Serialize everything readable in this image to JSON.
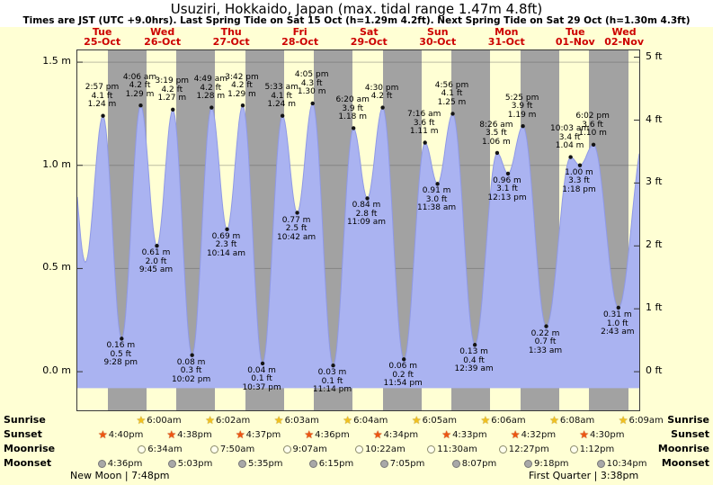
{
  "title": "Usuziri, Hokkaido, Japan (max. tidal range 1.47m 4.8ft)",
  "subtitle": "Times are JST (UTC +9.0hrs). Last Spring Tide on Sat 15 Oct (h=1.29m 4.2ft). Next Spring Tide on Sat 29 Oct (h=1.30m 4.3ft)",
  "colors": {
    "day_bg": "#ffffd4",
    "night_bg": "#a2a2a2",
    "tide_fill": "#aab3f1",
    "tide_stroke": "#8f99e6",
    "day_label_red": "#cc0000",
    "grid": "rgba(90,90,90,0.40)",
    "dot": "#141414"
  },
  "chart_data": {
    "type": "area",
    "title": "Usuziri, Hokkaido, Japan (max. tidal range 1.47m 4.8ft)",
    "t_start": 6,
    "t_end": 202,
    "ylim": [
      -0.19,
      1.56
    ],
    "baseline_m": -0.08,
    "y_axis_left": {
      "unit": "m",
      "ticks": [
        0,
        0.5,
        1,
        1.5
      ]
    },
    "y_axis_right": {
      "unit": "ft",
      "ticks": [
        0,
        1,
        2,
        3,
        4,
        5
      ]
    },
    "days": [
      {
        "dow": "Tue",
        "date": "25-Oct"
      },
      {
        "dow": "Wed",
        "date": "26-Oct"
      },
      {
        "dow": "Thu",
        "date": "27-Oct"
      },
      {
        "dow": "Fri",
        "date": "28-Oct"
      },
      {
        "dow": "Sat",
        "date": "29-Oct"
      },
      {
        "dow": "Sun",
        "date": "30-Oct"
      },
      {
        "dow": "Mon",
        "date": "31-Oct"
      },
      {
        "dow": "Tue",
        "date": "01-Nov"
      },
      {
        "dow": "Wed",
        "date": "02-Nov"
      }
    ],
    "tide_events": [
      {
        "type": "high",
        "t": 3.0,
        "m": 1.2,
        "labels": []
      },
      {
        "type": "low",
        "t": 8.8,
        "m": 0.53,
        "labels": []
      },
      {
        "type": "high",
        "t": 14.95,
        "m": 1.24,
        "ft": 4.1,
        "time": "2:57 pm",
        "labels": [
          "2:57 pm",
          "4.1 ft",
          "1.24 m"
        ]
      },
      {
        "type": "low",
        "t": 21.47,
        "m": 0.16,
        "ft": 0.5,
        "time": "9:28 pm",
        "labels": [
          "0.16 m",
          "0.5 ft",
          "9:28 pm"
        ]
      },
      {
        "type": "high",
        "t": 28.1,
        "m": 1.29,
        "ft": 4.2,
        "time": "4:06 am",
        "labels": [
          "4:06 am",
          "4.2 ft",
          "1.29 m"
        ]
      },
      {
        "type": "low",
        "t": 33.75,
        "m": 0.61,
        "ft": 2.0,
        "time": "9:45 am",
        "labels": [
          "0.61 m",
          "2.0 ft",
          "9:45 am"
        ]
      },
      {
        "type": "high",
        "t": 39.32,
        "m": 1.27,
        "ft": 4.2,
        "time": "3:19 pm",
        "labels": [
          "3:19 pm",
          "4.2 ft",
          "1.27 m"
        ]
      },
      {
        "type": "low",
        "t": 46.03,
        "m": 0.08,
        "ft": 0.3,
        "time": "10:02 pm",
        "labels": [
          "0.08 m",
          "0.3 ft",
          "10:02 pm"
        ]
      },
      {
        "type": "high",
        "t": 52.82,
        "m": 1.28,
        "ft": 4.2,
        "time": "4:49 am",
        "labels": [
          "4:49 am",
          "4.2 ft",
          "1.28 m"
        ]
      },
      {
        "type": "low",
        "t": 58.23,
        "m": 0.69,
        "ft": 2.3,
        "time": "10:14 am",
        "labels": [
          "0.69 m",
          "2.3 ft",
          "10:14 am"
        ]
      },
      {
        "type": "high",
        "t": 63.7,
        "m": 1.29,
        "ft": 4.2,
        "time": "3:42 pm",
        "labels": [
          "3:42 pm",
          "4.2 ft",
          "1.29 m"
        ]
      },
      {
        "type": "low",
        "t": 70.62,
        "m": 0.04,
        "ft": 0.1,
        "time": "10:37 pm",
        "labels": [
          "0.04 m",
          "0.1 ft",
          "10:37 pm"
        ]
      },
      {
        "type": "high",
        "t": 77.55,
        "m": 1.24,
        "ft": 4.1,
        "time": "5:33 am",
        "labels": [
          "5:33 am",
          "4.1 ft",
          "1.24 m"
        ]
      },
      {
        "type": "low",
        "t": 82.7,
        "m": 0.77,
        "ft": 2.5,
        "time": "10:42 am",
        "labels": [
          "0.77 m",
          "2.5 ft",
          "10:42 am"
        ]
      },
      {
        "type": "high",
        "t": 88.08,
        "m": 1.3,
        "ft": 4.3,
        "time": "4:05 pm",
        "labels": [
          "4:05 pm",
          "4.3 ft",
          "1.30 m"
        ]
      },
      {
        "type": "low",
        "t": 95.23,
        "m": 0.03,
        "ft": 0.1,
        "time": "11:14 pm",
        "labels": [
          "0.03 m",
          "0.1 ft",
          "11:14 pm"
        ]
      },
      {
        "type": "high",
        "t": 102.33,
        "m": 1.18,
        "ft": 3.9,
        "time": "6:20 am",
        "labels": [
          "6:20 am",
          "3.9 ft",
          "1.18 m"
        ]
      },
      {
        "type": "low",
        "t": 107.15,
        "m": 0.84,
        "ft": 2.8,
        "time": "11:09 am",
        "labels": [
          "0.84 m",
          "2.8 ft",
          "11:09 am"
        ]
      },
      {
        "type": "high",
        "t": 112.5,
        "m": 1.28,
        "ft": 4.2,
        "time": "4:30 pm",
        "labels": [
          "4:30 pm",
          "4.2 ft"
        ]
      },
      {
        "type": "low",
        "t": 119.9,
        "m": 0.06,
        "ft": 0.2,
        "time": "11:54 pm",
        "labels": [
          "0.06 m",
          "0.2 ft",
          "11:54 pm"
        ]
      },
      {
        "type": "high",
        "t": 127.27,
        "m": 1.11,
        "ft": 3.6,
        "time": "7:16 am",
        "labels": [
          "7:16 am",
          "3.6 ft",
          "1.11 m"
        ]
      },
      {
        "type": "low",
        "t": 131.63,
        "m": 0.91,
        "ft": 3.0,
        "time": "11:38 am",
        "labels": [
          "0.91 m",
          "3.0 ft",
          "11:38 am"
        ]
      },
      {
        "type": "high",
        "t": 136.93,
        "m": 1.25,
        "ft": 4.1,
        "time": "4:56 pm",
        "labels": [
          "4:56 pm",
          "4.1 ft",
          "1.25 m"
        ]
      },
      {
        "type": "low",
        "t": 144.65,
        "m": 0.13,
        "ft": 0.4,
        "time": "12:39 am",
        "labels": [
          "0.13 m",
          "0.4 ft",
          "12:39 am"
        ]
      },
      {
        "type": "high",
        "t": 152.43,
        "m": 1.06,
        "ft": 3.5,
        "time": "8:26 am",
        "labels": [
          "8:26 am",
          "3.5 ft",
          "1.06 m"
        ]
      },
      {
        "type": "low",
        "t": 156.22,
        "m": 0.96,
        "ft": 3.1,
        "time": "12:13 pm",
        "labels": [
          "0.96 m",
          "3.1 ft",
          "12:13 pm"
        ]
      },
      {
        "type": "high",
        "t": 161.42,
        "m": 1.19,
        "ft": 3.9,
        "time": "5:25 pm",
        "labels": [
          "5:25 pm",
          "3.9 ft",
          "1.19 m"
        ]
      },
      {
        "type": "low",
        "t": 169.55,
        "m": 0.22,
        "ft": 0.7,
        "time": "1:33 am",
        "labels": [
          "0.22 m",
          "0.7 ft",
          "1:33 am"
        ]
      },
      {
        "type": "high",
        "t": 178.05,
        "m": 1.04,
        "ft": 3.4,
        "time": "10:03 am",
        "labels": [
          "10:03 am",
          "3.4 ft",
          "1.04 m"
        ]
      },
      {
        "type": "low",
        "t": 181.3,
        "m": 1.0,
        "ft": 3.3,
        "time": "1:18 pm",
        "labels": [
          "1.00 m",
          "3.3 ft",
          "1:18 pm"
        ]
      },
      {
        "type": "high",
        "t": 186.03,
        "m": 1.1,
        "ft": 3.6,
        "time": "6:02 pm",
        "labels": [
          "6:02 pm",
          "3.6 ft",
          "1.10 m"
        ]
      },
      {
        "type": "low",
        "t": 194.72,
        "m": 0.31,
        "ft": 1.0,
        "time": "2:43 am",
        "labels": [
          "0.31 m",
          "1.0 ft",
          "2:43 am"
        ]
      },
      {
        "type": "high",
        "t": 204.0,
        "m": 1.15,
        "labels": []
      }
    ]
  },
  "astro": {
    "rows": [
      {
        "id": "sunrise",
        "label": "Sunrise",
        "entries": [
          {
            "time": "6:00am",
            "t": 30.0
          },
          {
            "time": "6:02am",
            "t": 54.03
          },
          {
            "time": "6:03am",
            "t": 78.05
          },
          {
            "time": "6:04am",
            "t": 102.07
          },
          {
            "time": "6:05am",
            "t": 126.08
          },
          {
            "time": "6:06am",
            "t": 150.1
          },
          {
            "time": "6:08am",
            "t": 174.13
          },
          {
            "time": "6:09am",
            "t": 198.15
          }
        ]
      },
      {
        "id": "sunset",
        "label": "Sunset",
        "entries": [
          {
            "time": "4:40pm",
            "t": 16.67
          },
          {
            "time": "4:38pm",
            "t": 40.63
          },
          {
            "time": "4:37pm",
            "t": 64.62
          },
          {
            "time": "4:36pm",
            "t": 88.6
          },
          {
            "time": "4:34pm",
            "t": 112.57
          },
          {
            "time": "4:33pm",
            "t": 136.55
          },
          {
            "time": "4:32pm",
            "t": 160.53
          },
          {
            "time": "4:30pm",
            "t": 184.5
          }
        ]
      },
      {
        "id": "moonrise",
        "label": "Moonrise",
        "entries": [
          {
            "time": "6:34am",
            "t": 30.57
          },
          {
            "time": "7:50am",
            "t": 55.83
          },
          {
            "time": "9:07am",
            "t": 81.12
          },
          {
            "time": "10:22am",
            "t": 106.37
          },
          {
            "time": "11:30am",
            "t": 131.5
          },
          {
            "time": "12:27pm",
            "t": 156.45
          },
          {
            "time": "1:12pm",
            "t": 181.2
          }
        ]
      },
      {
        "id": "moonset",
        "label": "Moonset",
        "entries": [
          {
            "time": "4:36pm",
            "t": 16.6
          },
          {
            "time": "5:03pm",
            "t": 41.05
          },
          {
            "time": "5:35pm",
            "t": 65.58
          },
          {
            "time": "6:15pm",
            "t": 90.25
          },
          {
            "time": "7:05pm",
            "t": 115.08
          },
          {
            "time": "8:07pm",
            "t": 140.12
          },
          {
            "time": "9:18pm",
            "t": 165.3
          },
          {
            "time": "10:34pm",
            "t": 190.57
          }
        ]
      }
    ],
    "notes": [
      {
        "text": "New Moon | 7:48pm"
      },
      {
        "text": "First Quarter | 3:38pm"
      }
    ]
  }
}
